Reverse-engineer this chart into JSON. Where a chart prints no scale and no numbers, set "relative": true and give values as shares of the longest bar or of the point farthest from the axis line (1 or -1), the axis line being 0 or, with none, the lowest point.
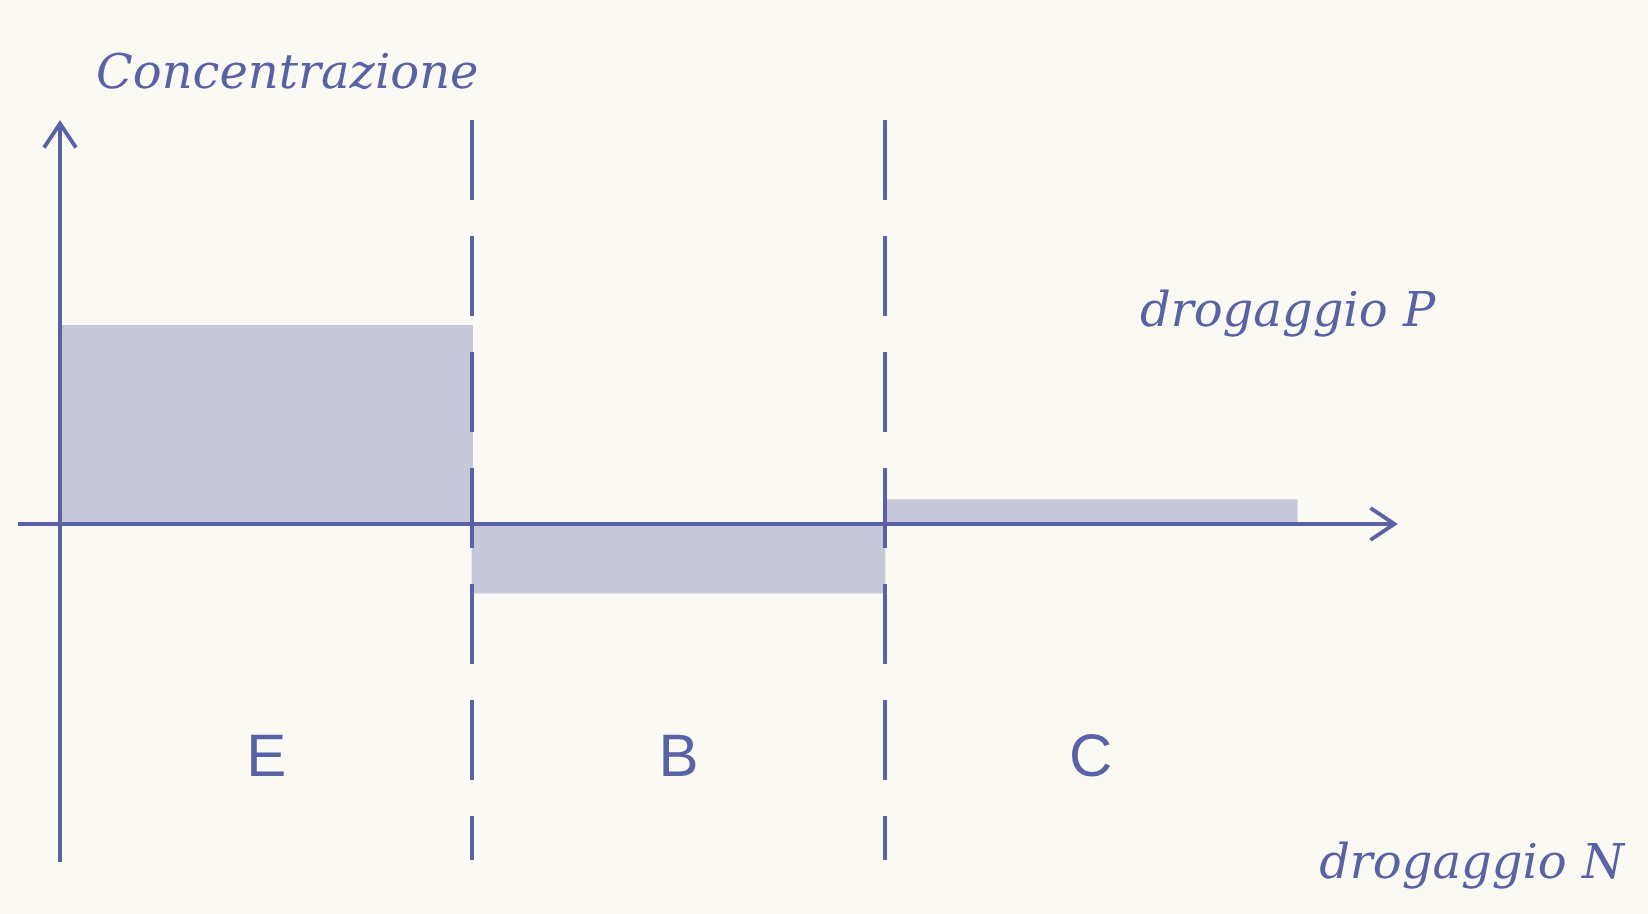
{
  "chart_data": {
    "type": "bar",
    "ylabel": "Concentrazione",
    "categories": [
      "E",
      "B",
      "C"
    ],
    "values": [
      1,
      -0.35,
      0.12
    ],
    "color": "#5a62a6",
    "relative": true,
    "grid": "x",
    "annotations": [
      "drogaggio P",
      "drogaggio N"
    ]
  }
}
